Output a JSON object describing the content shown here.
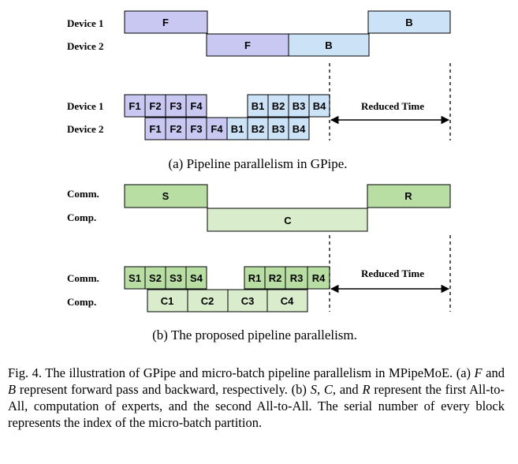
{
  "panel_a": {
    "row1_label": "Device 1",
    "row2_label": "Device 2",
    "row3_label": "Device 1",
    "row4_label": "Device 2",
    "row1_blocks": [
      "F",
      "B"
    ],
    "row2_blocks": [
      "F",
      "B"
    ],
    "row3_blocks": [
      "F1",
      "F2",
      "F3",
      "F4",
      "B1",
      "B2",
      "B3",
      "B4"
    ],
    "row4_blocks": [
      "F1",
      "F2",
      "F3",
      "F4",
      "B1",
      "B2",
      "B3",
      "B4"
    ],
    "reduced_time": "Reduced Time",
    "caption": "(a) Pipeline parallelism in GPipe."
  },
  "panel_b": {
    "row1_label": "Comm.",
    "row2_label": "Comp.",
    "row3_label": "Comm.",
    "row4_label": "Comp.",
    "row1_blocks": [
      "S",
      "R"
    ],
    "row2_blocks": [
      "C"
    ],
    "row3_blocks": [
      "S1",
      "S2",
      "S3",
      "S4",
      "R1",
      "R2",
      "R3",
      "R4"
    ],
    "row4_blocks": [
      "C1",
      "C2",
      "C3",
      "C4"
    ],
    "reduced_time": "Reduced Time",
    "caption": "(b) The proposed pipeline parallelism."
  },
  "colors": {
    "forward": "#c8c8f2",
    "backward": "#cce2f6",
    "comm": "#b9dea3",
    "comp": "#d9edcc",
    "border": "#000000"
  },
  "figure_caption": {
    "p1": "Fig. 4.   The illustration of GPipe and micro-batch pipeline parallelism in MPipeMoE. (a) ",
    "v1": "F",
    "p2": " and ",
    "v2": "B",
    "p3": " represent forward pass and backward, respectively. (b) ",
    "v3": "S",
    "p4": ", ",
    "v4": "C",
    "p5": ", and ",
    "v5": "R",
    "p6": " represent the first All-to-All, computation of experts, and the second All-to-All. The serial number of every block represents the index of the micro-batch partition."
  }
}
